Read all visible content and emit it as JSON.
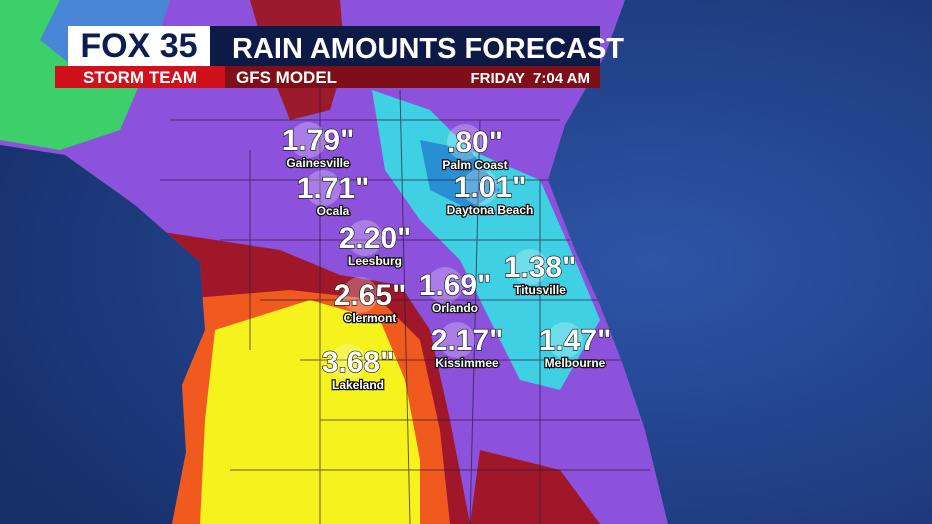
{
  "header": {
    "logo": "FOX 35",
    "team": "STORM TEAM",
    "title": "RAIN AMOUNTS FORECAST",
    "subtitle": "GFS MODEL",
    "time": "FRIDAY  7:04 AM"
  },
  "cities": [
    {
      "name": "Gainesville",
      "amount": "1.79\""
    },
    {
      "name": "Palm Coast",
      "amount": ".80\""
    },
    {
      "name": "Ocala",
      "amount": "1.71\""
    },
    {
      "name": "Daytona Beach",
      "amount": "1.01\""
    },
    {
      "name": "Leesburg",
      "amount": "2.20\""
    },
    {
      "name": "Titusville",
      "amount": "1.38\""
    },
    {
      "name": "Clermont",
      "amount": "2.65\""
    },
    {
      "name": "Orlando",
      "amount": "1.69\""
    },
    {
      "name": "Kissimmee",
      "amount": "2.17\""
    },
    {
      "name": "Melbourne",
      "amount": "1.47\""
    },
    {
      "name": "Lakeland",
      "amount": "3.68\""
    }
  ]
}
